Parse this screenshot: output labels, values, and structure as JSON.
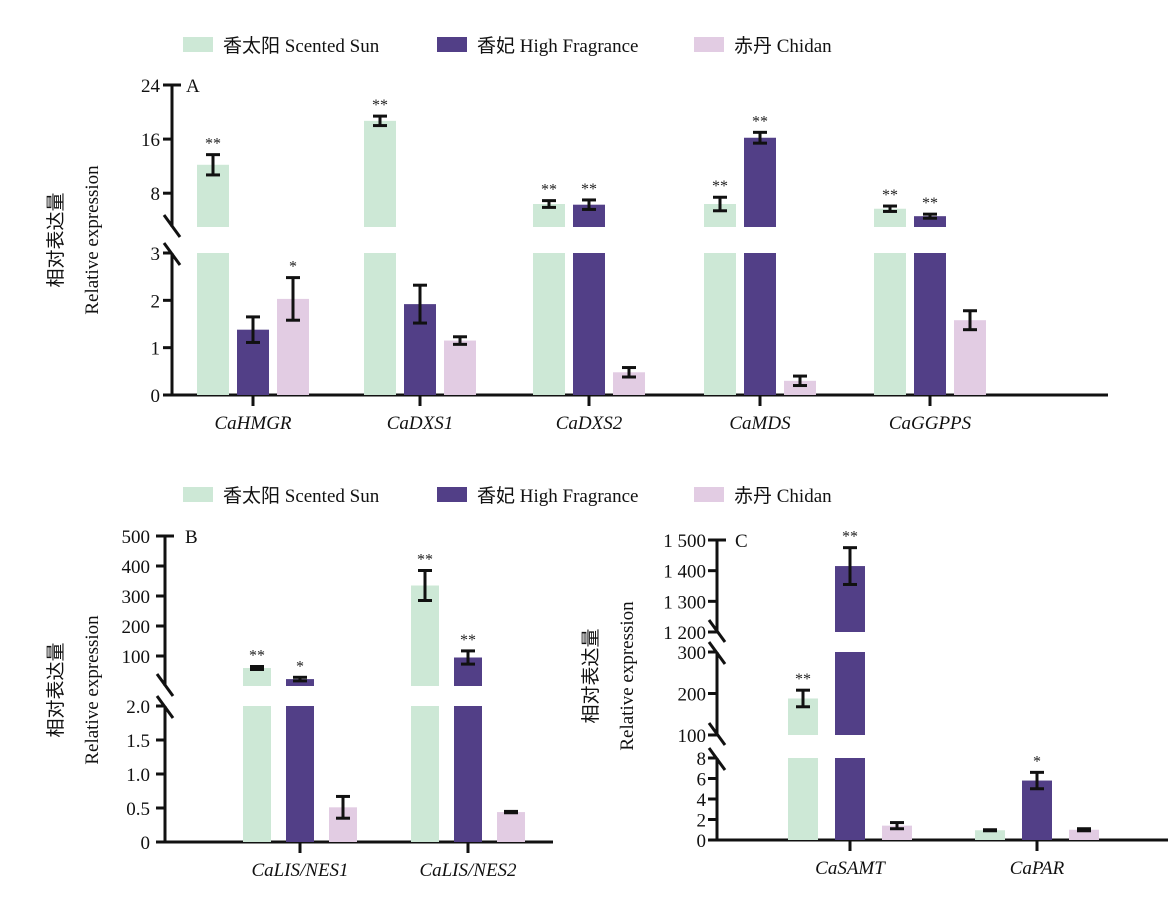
{
  "chart_data": [
    {
      "type": "bar",
      "panel": "A",
      "ylabel_cn": "相对表达量",
      "ylabel": "Relative expression",
      "legend": [
        "香太阳 Scented Sun",
        "香妃 High Fragrance",
        "赤丹 Chidan"
      ],
      "legend_placement": "top",
      "categories": [
        "CaHMGR",
        "CaDXS1",
        "CaDXS2",
        "CaMDS",
        "CaGGPPS"
      ],
      "axis_segments": [
        {
          "range": [
            0,
            3
          ],
          "ticks": [
            0,
            1,
            2,
            3
          ],
          "tick_labels": [
            "0",
            "1",
            "2",
            "3"
          ]
        },
        {
          "range": [
            3,
            24
          ],
          "ticks": [
            8,
            16,
            24
          ],
          "tick_labels": [
            "8",
            "16",
            "24"
          ]
        }
      ],
      "series": [
        {
          "name": "香太阳 Scented Sun",
          "values": [
            12.2,
            18.7,
            6.4,
            6.4,
            5.7
          ],
          "errors": [
            1.5,
            0.7,
            0.5,
            1.0,
            0.4
          ],
          "sig": [
            "**",
            "**",
            "**",
            "**",
            "**"
          ]
        },
        {
          "name": "香妃 High Fragrance",
          "values": [
            1.38,
            1.92,
            6.3,
            16.2,
            4.6
          ],
          "errors": [
            0.27,
            0.4,
            0.7,
            0.8,
            0.3
          ],
          "sig": [
            "",
            "",
            "**",
            "**",
            "**"
          ]
        },
        {
          "name": "赤丹 Chidan",
          "values": [
            2.03,
            1.15,
            0.48,
            0.3,
            1.58
          ],
          "errors": [
            0.45,
            0.08,
            0.1,
            0.1,
            0.2
          ],
          "sig": [
            "*",
            "",
            "",
            "",
            ""
          ]
        }
      ]
    },
    {
      "type": "bar",
      "panel": "B",
      "ylabel_cn": "相对表达量",
      "ylabel": "Relative expression",
      "legend": [
        "香太阳 Scented Sun",
        "香妃 High Fragrance",
        "赤丹 Chidan"
      ],
      "legend_placement": "top",
      "categories": [
        "CaLIS/NES1",
        "CaLIS/NES2"
      ],
      "axis_segments": [
        {
          "range": [
            0,
            2
          ],
          "ticks": [
            0,
            0.5,
            1.0,
            1.5,
            2.0
          ],
          "tick_labels": [
            "0",
            "0.5",
            "1.0",
            "1.5",
            "2.0"
          ]
        },
        {
          "range": [
            0,
            500
          ],
          "ticks": [
            100,
            200,
            300,
            400,
            500
          ],
          "tick_labels": [
            "100",
            "200",
            "300",
            "400",
            "500"
          ]
        }
      ],
      "series": [
        {
          "name": "香太阳 Scented Sun",
          "values": [
            60,
            335
          ],
          "errors": [
            5,
            50
          ],
          "sig": [
            "**",
            "**"
          ]
        },
        {
          "name": "香妃 High Fragrance",
          "values": [
            23,
            95
          ],
          "errors": [
            6,
            22
          ],
          "sig": [
            "*",
            "**"
          ]
        },
        {
          "name": "赤丹 Chidan",
          "values": [
            0.51,
            0.44
          ],
          "errors": [
            0.16,
            0.01
          ],
          "sig": [
            "",
            ""
          ]
        }
      ]
    },
    {
      "type": "bar",
      "panel": "C",
      "ylabel_cn": "相对表达量",
      "ylabel": "Relative expression",
      "legend": [
        "香太阳 Scented Sun",
        "香妃 High Fragrance",
        "赤丹 Chidan"
      ],
      "legend_placement": "top",
      "categories": [
        "CaSAMT",
        "CaPAR"
      ],
      "axis_segments": [
        {
          "range": [
            0,
            8
          ],
          "ticks": [
            0,
            2,
            4,
            6,
            8
          ],
          "tick_labels": [
            "0",
            "2",
            "4",
            "6",
            "8"
          ]
        },
        {
          "range": [
            100,
            300
          ],
          "ticks": [
            100,
            200,
            300
          ],
          "tick_labels": [
            "100",
            "200",
            "300"
          ]
        },
        {
          "range": [
            1200,
            1500
          ],
          "ticks": [
            1200,
            1300,
            1400,
            1500
          ],
          "tick_labels": [
            "1 200",
            "1 300",
            "1 400",
            "1 500"
          ]
        }
      ],
      "series": [
        {
          "name": "香太阳 Scented Sun",
          "values": [
            188,
            0.95
          ],
          "errors": [
            20,
            0.05
          ],
          "sig": [
            "**",
            ""
          ]
        },
        {
          "name": "香妃 High Fragrance",
          "values": [
            1415,
            5.8
          ],
          "errors": [
            60,
            0.8
          ],
          "sig": [
            "**",
            "*"
          ]
        },
        {
          "name": "赤丹 Chidan",
          "values": [
            1.4,
            1.0
          ],
          "errors": [
            0.3,
            0.1
          ],
          "sig": [
            "",
            ""
          ]
        }
      ]
    }
  ],
  "colors": {
    "scented_sun": "#cde8d6",
    "high_fragrance": "#523f87",
    "chidan": "#e2cce3",
    "axis": "#111111"
  }
}
